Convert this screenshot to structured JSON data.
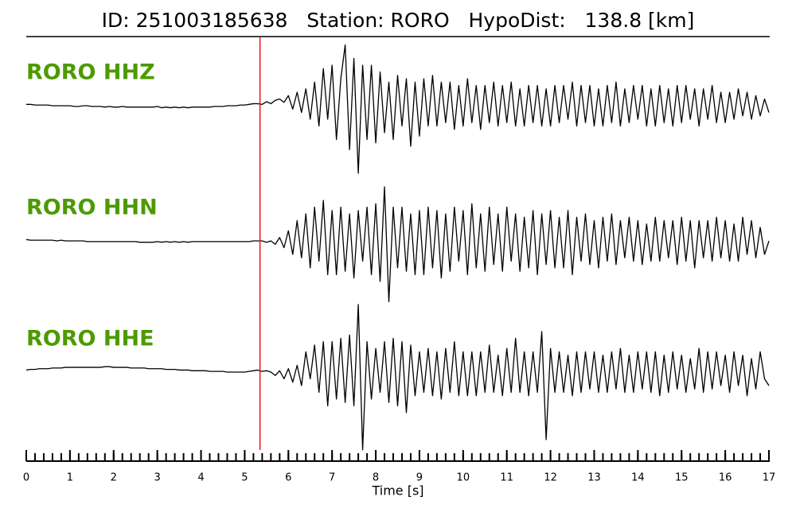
{
  "chart_data": {
    "type": "line",
    "title": "ID: 251003185638   Station: RORO   HypoDist:   138.8 [km]",
    "xlabel": "Time [s]",
    "xlim": [
      0,
      17
    ],
    "xticks": [
      0,
      1,
      2,
      3,
      4,
      5,
      6,
      7,
      8,
      9,
      10,
      11,
      12,
      13,
      14,
      15,
      16,
      17
    ],
    "xminor_step": 0.2,
    "ylim": [
      -1.2,
      1.2
    ],
    "pick_time": 5.35,
    "pick_color": "#e8141c",
    "label_color": "#4c9a00",
    "x": [
      0,
      0.1,
      0.2,
      0.3,
      0.4,
      0.5,
      0.6,
      0.7,
      0.8,
      0.9,
      1,
      1.1,
      1.2,
      1.3,
      1.4,
      1.5,
      1.6,
      1.7,
      1.8,
      1.9,
      2,
      2.1,
      2.2,
      2.3,
      2.4,
      2.5,
      2.6,
      2.7,
      2.8,
      2.9,
      3,
      3.1,
      3.2,
      3.3,
      3.4,
      3.5,
      3.6,
      3.7,
      3.8,
      3.9,
      4,
      4.1,
      4.2,
      4.3,
      4.4,
      4.5,
      4.6,
      4.7,
      4.8,
      4.9,
      5,
      5.1,
      5.2,
      5.3,
      5.4,
      5.5,
      5.6,
      5.7,
      5.8,
      5.9,
      6,
      6.1,
      6.2,
      6.3,
      6.4,
      6.5,
      6.6,
      6.7,
      6.8,
      6.9,
      7,
      7.1,
      7.2,
      7.3,
      7.4,
      7.5,
      7.6,
      7.7,
      7.8,
      7.9,
      8,
      8.1,
      8.2,
      8.3,
      8.4,
      8.5,
      8.6,
      8.7,
      8.8,
      8.9,
      9,
      9.1,
      9.2,
      9.3,
      9.4,
      9.5,
      9.6,
      9.7,
      9.8,
      9.9,
      10,
      10.1,
      10.2,
      10.3,
      10.4,
      10.5,
      10.6,
      10.7,
      10.8,
      10.9,
      11,
      11.1,
      11.2,
      11.3,
      11.4,
      11.5,
      11.6,
      11.7,
      11.8,
      11.9,
      12,
      12.1,
      12.2,
      12.3,
      12.4,
      12.5,
      12.6,
      12.7,
      12.8,
      12.9,
      13,
      13.1,
      13.2,
      13.3,
      13.4,
      13.5,
      13.6,
      13.7,
      13.8,
      13.9,
      14,
      14.1,
      14.2,
      14.3,
      14.4,
      14.5,
      14.6,
      14.7,
      14.8,
      14.9,
      15,
      15.1,
      15.2,
      15.3,
      15.4,
      15.5,
      15.6,
      15.7,
      15.8,
      15.9,
      16,
      16.1,
      16.2,
      16.3,
      16.4,
      16.5,
      16.6,
      16.7,
      16.8,
      16.9,
      17
    ],
    "series": [
      {
        "name": "RORO HHZ",
        "color": "#000000",
        "values": [
          0.02,
          0.02,
          0.01,
          0.01,
          0.01,
          0.01,
          0.0,
          0.0,
          0.0,
          0.0,
          0.0,
          -0.01,
          -0.01,
          0.0,
          0.0,
          -0.01,
          -0.01,
          -0.01,
          -0.02,
          -0.01,
          -0.02,
          -0.02,
          -0.01,
          -0.02,
          -0.02,
          -0.02,
          -0.02,
          -0.02,
          -0.02,
          -0.02,
          -0.01,
          -0.03,
          -0.02,
          -0.03,
          -0.02,
          -0.03,
          -0.02,
          -0.03,
          -0.02,
          -0.02,
          -0.02,
          -0.02,
          -0.02,
          -0.01,
          -0.01,
          -0.01,
          0.0,
          0.0,
          0.0,
          0.01,
          0.01,
          0.02,
          0.03,
          0.03,
          0.02,
          0.06,
          0.03,
          0.08,
          0.1,
          0.05,
          0.15,
          -0.05,
          0.2,
          -0.1,
          0.25,
          -0.2,
          0.35,
          -0.3,
          0.55,
          -0.2,
          0.6,
          -0.5,
          0.4,
          0.9,
          -0.65,
          0.7,
          -1.0,
          0.6,
          -0.5,
          0.6,
          -0.55,
          0.5,
          -0.4,
          0.35,
          -0.5,
          0.45,
          -0.3,
          0.4,
          -0.6,
          0.35,
          -0.45,
          0.4,
          -0.3,
          0.45,
          -0.3,
          0.35,
          -0.25,
          0.35,
          -0.35,
          0.3,
          -0.3,
          0.4,
          -0.25,
          0.3,
          -0.35,
          0.3,
          -0.25,
          0.35,
          -0.3,
          0.3,
          -0.25,
          0.35,
          -0.3,
          0.25,
          -0.3,
          0.3,
          -0.25,
          0.3,
          -0.3,
          0.25,
          -0.3,
          0.3,
          -0.25,
          0.3,
          -0.2,
          0.35,
          -0.3,
          0.3,
          -0.25,
          0.3,
          -0.3,
          0.25,
          -0.3,
          0.3,
          -0.25,
          0.35,
          -0.3,
          0.25,
          -0.25,
          0.3,
          -0.2,
          0.3,
          -0.3,
          0.25,
          -0.3,
          0.3,
          -0.25,
          0.25,
          -0.3,
          0.3,
          -0.25,
          0.3,
          -0.2,
          0.25,
          -0.3,
          0.25,
          -0.2,
          0.3,
          -0.25,
          0.2,
          -0.25,
          0.2,
          -0.2,
          0.25,
          -0.15,
          0.2,
          -0.2,
          0.15,
          -0.15,
          0.1,
          -0.1
        ]
      },
      {
        "name": "RORO HHN",
        "color": "#000000",
        "values": [
          0.02,
          0.01,
          0.01,
          0.01,
          0.01,
          0.01,
          0.01,
          0.0,
          0.01,
          0.0,
          0.0,
          0.0,
          0.0,
          0.0,
          -0.01,
          -0.01,
          -0.01,
          -0.01,
          -0.01,
          -0.01,
          -0.01,
          -0.01,
          -0.01,
          -0.01,
          -0.01,
          -0.01,
          -0.02,
          -0.02,
          -0.02,
          -0.02,
          -0.01,
          -0.02,
          -0.01,
          -0.02,
          -0.01,
          -0.02,
          -0.01,
          -0.02,
          -0.01,
          -0.01,
          -0.01,
          -0.01,
          -0.01,
          -0.01,
          -0.01,
          -0.01,
          -0.01,
          -0.01,
          -0.01,
          -0.01,
          -0.01,
          -0.01,
          0.0,
          0.0,
          0.0,
          -0.02,
          0.0,
          -0.05,
          0.05,
          -0.1,
          0.15,
          -0.2,
          0.3,
          -0.25,
          0.4,
          -0.4,
          0.5,
          -0.3,
          0.6,
          -0.5,
          0.45,
          -0.5,
          0.5,
          -0.45,
          0.4,
          -0.55,
          0.45,
          -0.3,
          0.5,
          -0.5,
          0.55,
          -0.6,
          0.8,
          -0.9,
          0.5,
          -0.4,
          0.5,
          -0.45,
          0.4,
          -0.5,
          0.45,
          -0.5,
          0.5,
          -0.4,
          0.45,
          -0.55,
          0.4,
          -0.45,
          0.5,
          -0.3,
          0.45,
          -0.5,
          0.55,
          -0.4,
          0.4,
          -0.45,
          0.5,
          -0.35,
          0.4,
          -0.45,
          0.5,
          -0.3,
          0.4,
          -0.45,
          0.35,
          -0.4,
          0.45,
          -0.5,
          0.4,
          -0.35,
          0.45,
          -0.4,
          0.35,
          -0.4,
          0.45,
          -0.5,
          0.35,
          -0.3,
          0.4,
          -0.35,
          0.3,
          -0.4,
          0.35,
          -0.3,
          0.4,
          -0.35,
          0.3,
          -0.25,
          0.35,
          -0.3,
          0.3,
          -0.35,
          0.25,
          -0.3,
          0.35,
          -0.3,
          0.3,
          -0.25,
          0.3,
          -0.35,
          0.35,
          -0.3,
          0.3,
          -0.4,
          0.3,
          -0.25,
          0.3,
          -0.3,
          0.35,
          -0.25,
          0.3,
          -0.3,
          0.25,
          -0.3,
          0.35,
          -0.2,
          0.3,
          -0.25,
          0.2,
          -0.2,
          0.0
        ]
      },
      {
        "name": "RORO HHE",
        "color": "#000000",
        "values": [
          0.03,
          0.04,
          0.04,
          0.05,
          0.05,
          0.05,
          0.06,
          0.06,
          0.06,
          0.07,
          0.07,
          0.07,
          0.07,
          0.07,
          0.07,
          0.07,
          0.07,
          0.07,
          0.08,
          0.08,
          0.07,
          0.07,
          0.07,
          0.07,
          0.06,
          0.06,
          0.06,
          0.06,
          0.05,
          0.05,
          0.05,
          0.05,
          0.04,
          0.04,
          0.04,
          0.03,
          0.03,
          0.03,
          0.02,
          0.02,
          0.02,
          0.02,
          0.01,
          0.01,
          0.01,
          0.01,
          0.0,
          0.0,
          0.0,
          0.0,
          0.0,
          0.01,
          0.02,
          0.03,
          0.01,
          0.02,
          0.0,
          -0.05,
          0.02,
          -0.1,
          0.05,
          -0.15,
          0.1,
          -0.2,
          0.3,
          -0.1,
          0.4,
          -0.3,
          0.45,
          -0.5,
          0.45,
          -0.4,
          0.5,
          -0.45,
          0.55,
          -0.5,
          1.0,
          -1.15,
          0.45,
          -0.4,
          0.35,
          -0.3,
          0.45,
          -0.45,
          0.5,
          -0.5,
          0.45,
          -0.6,
          0.4,
          -0.35,
          0.3,
          -0.3,
          0.35,
          -0.35,
          0.3,
          -0.4,
          0.35,
          -0.3,
          0.45,
          -0.35,
          0.3,
          -0.35,
          0.3,
          -0.35,
          0.3,
          -0.3,
          0.4,
          -0.3,
          0.25,
          -0.35,
          0.35,
          -0.3,
          0.5,
          -0.3,
          0.3,
          -0.35,
          0.3,
          -0.3,
          0.6,
          -1.0,
          0.35,
          -0.3,
          0.3,
          -0.3,
          0.25,
          -0.35,
          0.3,
          -0.3,
          0.3,
          -0.25,
          0.3,
          -0.3,
          0.25,
          -0.3,
          0.3,
          -0.25,
          0.35,
          -0.3,
          0.25,
          -0.3,
          0.3,
          -0.25,
          0.3,
          -0.3,
          0.3,
          -0.35,
          0.25,
          -0.3,
          0.3,
          -0.25,
          0.25,
          -0.3,
          0.2,
          -0.25,
          0.35,
          -0.3,
          0.3,
          -0.25,
          0.3,
          -0.2,
          0.25,
          -0.3,
          0.3,
          -0.2,
          0.25,
          -0.35,
          0.2,
          -0.25,
          0.3,
          -0.1,
          -0.2
        ]
      }
    ]
  }
}
